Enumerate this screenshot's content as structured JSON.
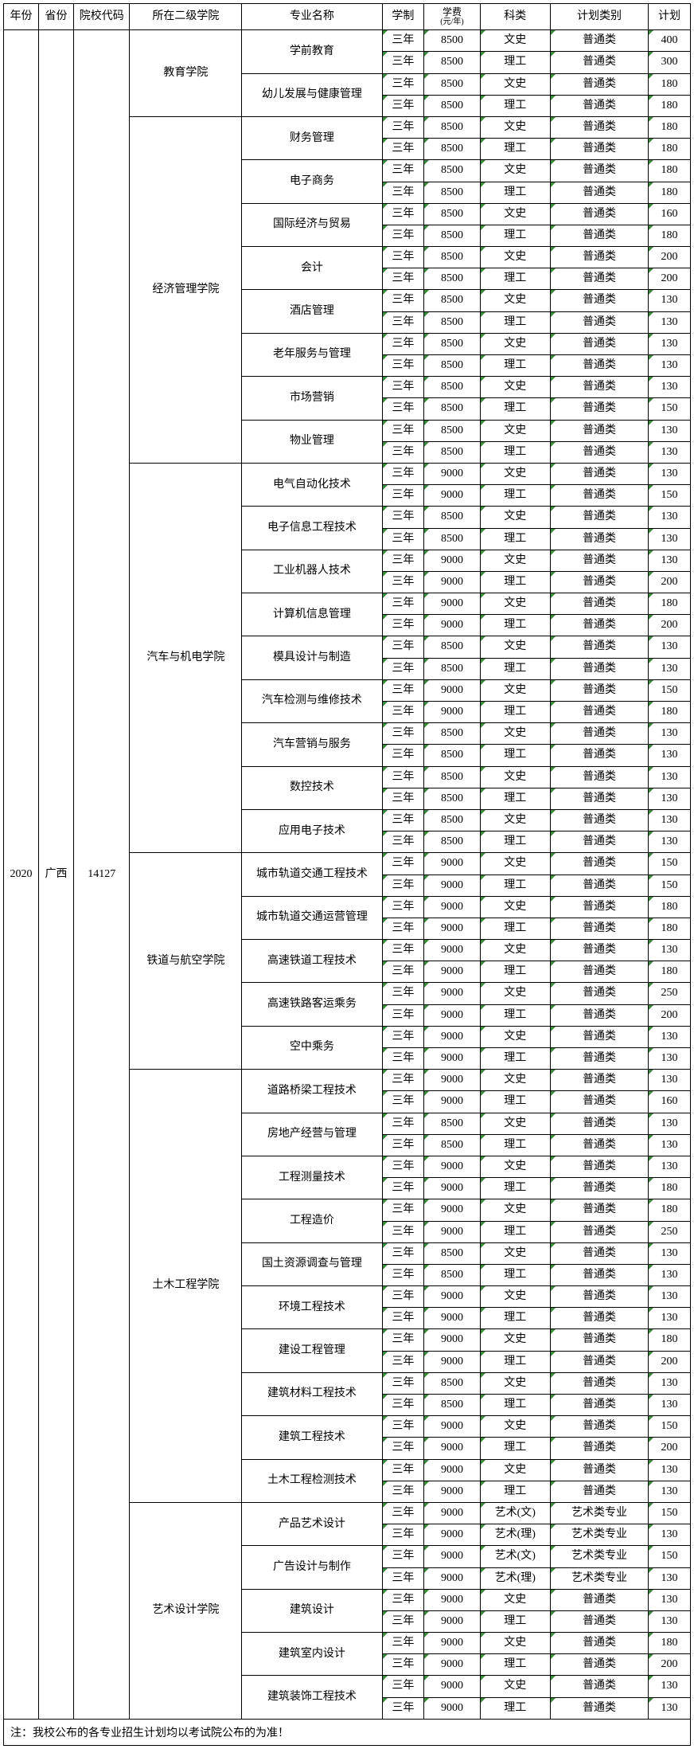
{
  "headers": {
    "year": "年份",
    "province": "省份",
    "school_code": "院校代码",
    "college": "所在二级学院",
    "major": "专业名称",
    "duration": "学制",
    "fee": "学费",
    "fee_unit": "(元/年)",
    "category": "科类",
    "plan_type": "计划类别",
    "plan_count": "计划"
  },
  "year": "2020",
  "province": "广西",
  "school_code": "14127",
  "default_duration": "三年",
  "default_plan_type": "普通类",
  "colleges": [
    {
      "name": "教育学院",
      "majors": [
        {
          "name": "学前教育",
          "rows": [
            {
              "fee": "8500",
              "category": "文史",
              "plan": "400"
            },
            {
              "fee": "8500",
              "category": "理工",
              "plan": "300"
            }
          ]
        },
        {
          "name": "幼儿发展与健康管理",
          "rows": [
            {
              "fee": "8500",
              "category": "文史",
              "plan": "180"
            },
            {
              "fee": "8500",
              "category": "理工",
              "plan": "180"
            }
          ]
        }
      ]
    },
    {
      "name": "经济管理学院",
      "majors": [
        {
          "name": "财务管理",
          "rows": [
            {
              "fee": "8500",
              "category": "文史",
              "plan": "180"
            },
            {
              "fee": "8500",
              "category": "理工",
              "plan": "180"
            }
          ]
        },
        {
          "name": "电子商务",
          "rows": [
            {
              "fee": "8500",
              "category": "文史",
              "plan": "180"
            },
            {
              "fee": "8500",
              "category": "理工",
              "plan": "180"
            }
          ]
        },
        {
          "name": "国际经济与贸易",
          "rows": [
            {
              "fee": "8500",
              "category": "文史",
              "plan": "160"
            },
            {
              "fee": "8500",
              "category": "理工",
              "plan": "180"
            }
          ]
        },
        {
          "name": "会计",
          "rows": [
            {
              "fee": "8500",
              "category": "文史",
              "plan": "200"
            },
            {
              "fee": "8500",
              "category": "理工",
              "plan": "200"
            }
          ]
        },
        {
          "name": "酒店管理",
          "rows": [
            {
              "fee": "8500",
              "category": "文史",
              "plan": "130"
            },
            {
              "fee": "8500",
              "category": "理工",
              "plan": "130"
            }
          ]
        },
        {
          "name": "老年服务与管理",
          "rows": [
            {
              "fee": "8500",
              "category": "文史",
              "plan": "130"
            },
            {
              "fee": "8500",
              "category": "理工",
              "plan": "130"
            }
          ]
        },
        {
          "name": "市场营销",
          "rows": [
            {
              "fee": "8500",
              "category": "文史",
              "plan": "130"
            },
            {
              "fee": "8500",
              "category": "理工",
              "plan": "150"
            }
          ]
        },
        {
          "name": "物业管理",
          "rows": [
            {
              "fee": "8500",
              "category": "文史",
              "plan": "130"
            },
            {
              "fee": "8500",
              "category": "理工",
              "plan": "130"
            }
          ]
        }
      ]
    },
    {
      "name": "汽车与机电学院",
      "majors": [
        {
          "name": "电气自动化技术",
          "rows": [
            {
              "fee": "9000",
              "category": "文史",
              "plan": "130"
            },
            {
              "fee": "9000",
              "category": "理工",
              "plan": "150"
            }
          ]
        },
        {
          "name": "电子信息工程技术",
          "rows": [
            {
              "fee": "8500",
              "category": "文史",
              "plan": "130"
            },
            {
              "fee": "8500",
              "category": "理工",
              "plan": "130"
            }
          ]
        },
        {
          "name": "工业机器人技术",
          "rows": [
            {
              "fee": "9000",
              "category": "文史",
              "plan": "130"
            },
            {
              "fee": "9000",
              "category": "理工",
              "plan": "200"
            }
          ]
        },
        {
          "name": "计算机信息管理",
          "rows": [
            {
              "fee": "9000",
              "category": "文史",
              "plan": "180"
            },
            {
              "fee": "9000",
              "category": "理工",
              "plan": "200"
            }
          ]
        },
        {
          "name": "模具设计与制造",
          "rows": [
            {
              "fee": "8500",
              "category": "文史",
              "plan": "130"
            },
            {
              "fee": "8500",
              "category": "理工",
              "plan": "130"
            }
          ]
        },
        {
          "name": "汽车检测与维修技术",
          "rows": [
            {
              "fee": "9000",
              "category": "文史",
              "plan": "150"
            },
            {
              "fee": "9000",
              "category": "理工",
              "plan": "180"
            }
          ]
        },
        {
          "name": "汽车营销与服务",
          "rows": [
            {
              "fee": "8500",
              "category": "文史",
              "plan": "130"
            },
            {
              "fee": "8500",
              "category": "理工",
              "plan": "130"
            }
          ]
        },
        {
          "name": "数控技术",
          "rows": [
            {
              "fee": "8500",
              "category": "文史",
              "plan": "130"
            },
            {
              "fee": "8500",
              "category": "理工",
              "plan": "130"
            }
          ]
        },
        {
          "name": "应用电子技术",
          "rows": [
            {
              "fee": "8500",
              "category": "文史",
              "plan": "130"
            },
            {
              "fee": "8500",
              "category": "理工",
              "plan": "130"
            }
          ]
        }
      ]
    },
    {
      "name": "铁道与航空学院",
      "majors": [
        {
          "name": "城市轨道交通工程技术",
          "rows": [
            {
              "fee": "9000",
              "category": "文史",
              "plan": "150"
            },
            {
              "fee": "9000",
              "category": "理工",
              "plan": "150"
            }
          ]
        },
        {
          "name": "城市轨道交通运营管理",
          "rows": [
            {
              "fee": "9000",
              "category": "文史",
              "plan": "180"
            },
            {
              "fee": "9000",
              "category": "理工",
              "plan": "180"
            }
          ]
        },
        {
          "name": "高速铁道工程技术",
          "rows": [
            {
              "fee": "9000",
              "category": "文史",
              "plan": "130"
            },
            {
              "fee": "9000",
              "category": "理工",
              "plan": "180"
            }
          ]
        },
        {
          "name": "高速铁路客运乘务",
          "rows": [
            {
              "fee": "9000",
              "category": "文史",
              "plan": "250"
            },
            {
              "fee": "9000",
              "category": "理工",
              "plan": "200"
            }
          ]
        },
        {
          "name": "空中乘务",
          "rows": [
            {
              "fee": "9000",
              "category": "文史",
              "plan": "130"
            },
            {
              "fee": "9000",
              "category": "理工",
              "plan": "130"
            }
          ]
        }
      ]
    },
    {
      "name": "土木工程学院",
      "majors": [
        {
          "name": "道路桥梁工程技术",
          "rows": [
            {
              "fee": "9000",
              "category": "文史",
              "plan": "130"
            },
            {
              "fee": "9000",
              "category": "理工",
              "plan": "160"
            }
          ]
        },
        {
          "name": "房地产经营与管理",
          "rows": [
            {
              "fee": "8500",
              "category": "文史",
              "plan": "130"
            },
            {
              "fee": "8500",
              "category": "理工",
              "plan": "130"
            }
          ]
        },
        {
          "name": "工程测量技术",
          "rows": [
            {
              "fee": "9000",
              "category": "文史",
              "plan": "130"
            },
            {
              "fee": "9000",
              "category": "理工",
              "plan": "180"
            }
          ]
        },
        {
          "name": "工程造价",
          "rows": [
            {
              "fee": "9000",
              "category": "文史",
              "plan": "180"
            },
            {
              "fee": "9000",
              "category": "理工",
              "plan": "250"
            }
          ]
        },
        {
          "name": "国土资源调查与管理",
          "rows": [
            {
              "fee": "8500",
              "category": "文史",
              "plan": "130"
            },
            {
              "fee": "8500",
              "category": "理工",
              "plan": "130"
            }
          ]
        },
        {
          "name": "环境工程技术",
          "rows": [
            {
              "fee": "9000",
              "category": "文史",
              "plan": "130"
            },
            {
              "fee": "9000",
              "category": "理工",
              "plan": "130"
            }
          ]
        },
        {
          "name": "建设工程管理",
          "rows": [
            {
              "fee": "9000",
              "category": "文史",
              "plan": "180"
            },
            {
              "fee": "9000",
              "category": "理工",
              "plan": "200"
            }
          ]
        },
        {
          "name": "建筑材料工程技术",
          "rows": [
            {
              "fee": "8500",
              "category": "文史",
              "plan": "130"
            },
            {
              "fee": "8500",
              "category": "理工",
              "plan": "130"
            }
          ]
        },
        {
          "name": "建筑工程技术",
          "rows": [
            {
              "fee": "9000",
              "category": "文史",
              "plan": "150"
            },
            {
              "fee": "9000",
              "category": "理工",
              "plan": "200"
            }
          ]
        },
        {
          "name": "土木工程检测技术",
          "rows": [
            {
              "fee": "9000",
              "category": "文史",
              "plan": "130"
            },
            {
              "fee": "9000",
              "category": "理工",
              "plan": "130"
            }
          ]
        }
      ]
    },
    {
      "name": "艺术设计学院",
      "majors": [
        {
          "name": "产品艺术设计",
          "rows": [
            {
              "fee": "9000",
              "category": "艺术(文)",
              "plan_type": "艺术类专业",
              "plan": "150"
            },
            {
              "fee": "9000",
              "category": "艺术(理)",
              "plan_type": "艺术类专业",
              "plan": "130"
            }
          ]
        },
        {
          "name": "广告设计与制作",
          "rows": [
            {
              "fee": "9000",
              "category": "艺术(文)",
              "plan_type": "艺术类专业",
              "plan": "150"
            },
            {
              "fee": "9000",
              "category": "艺术(理)",
              "plan_type": "艺术类专业",
              "plan": "130"
            }
          ]
        },
        {
          "name": "建筑设计",
          "rows": [
            {
              "fee": "9000",
              "category": "文史",
              "plan": "130"
            },
            {
              "fee": "9000",
              "category": "理工",
              "plan": "130"
            }
          ]
        },
        {
          "name": "建筑室内设计",
          "rows": [
            {
              "fee": "9000",
              "category": "文史",
              "plan": "180"
            },
            {
              "fee": "9000",
              "category": "理工",
              "plan": "200"
            }
          ]
        },
        {
          "name": "建筑装饰工程技术",
          "rows": [
            {
              "fee": "9000",
              "category": "文史",
              "plan": "130"
            },
            {
              "fee": "9000",
              "category": "理工",
              "plan": "130"
            }
          ]
        }
      ]
    }
  ],
  "footnote": "注：我校公布的各专业招生计划均以考试院公布的为准！"
}
